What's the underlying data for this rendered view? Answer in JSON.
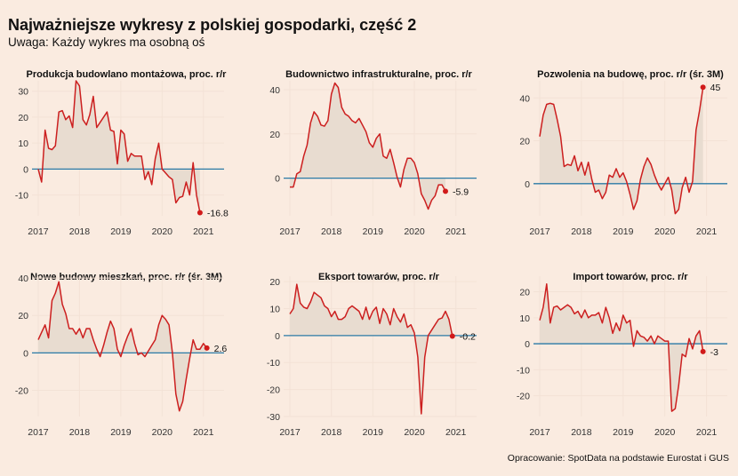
{
  "header": {
    "title": "Najważniejsze wykresy z polskiej gospodarki, część 2",
    "subtitle": "Uwaga: Każdy wykres ma osobną oś"
  },
  "caption": "Opracowanie: SpotData na podstawie Eurostat i GUS",
  "colors": {
    "background": "#faebe0",
    "line": "#cc1f1f",
    "fill": "#e8dcd0",
    "zero_line": "#2a7aa6",
    "grid": "#f3e2d6",
    "end_dot": "#d11a1a"
  },
  "chart_data": [
    {
      "type": "area",
      "title": "Produkcja budowlano montażowa, proc. r/r",
      "x_start": 2017.0,
      "x_step": 0.0833333,
      "xticks": [
        "2017",
        "2018",
        "2019",
        "2020",
        "2021"
      ],
      "xlim": [
        2016.85,
        2021.5
      ],
      "ylim": [
        -18,
        34
      ],
      "yticks": [
        -10,
        0,
        10,
        20,
        30
      ],
      "values": [
        0,
        -5,
        15,
        8,
        7.5,
        9,
        22,
        22.5,
        19,
        20.5,
        16,
        34,
        32,
        19,
        17,
        21,
        28,
        16,
        18,
        20,
        22,
        15,
        14.5,
        2,
        15,
        13.5,
        3,
        6,
        5,
        5,
        5,
        -4,
        -1,
        -6,
        4,
        10,
        0,
        -1.5,
        -3,
        -4,
        -13,
        -11,
        -10.5,
        -5,
        -10,
        2.5,
        -10,
        -16.8
      ],
      "end_label": "-16.8"
    },
    {
      "type": "area",
      "title": "Budownictwo infrastrukturalne, proc. r/r",
      "x_start": 2017.0,
      "x_step": 0.0833333,
      "xticks": [
        "2017",
        "2018",
        "2019",
        "2020",
        "2021"
      ],
      "xlim": [
        2016.85,
        2021.5
      ],
      "ylim": [
        -17,
        44
      ],
      "yticks": [
        0,
        20,
        40
      ],
      "values": [
        -4,
        -4,
        2,
        3,
        10,
        15,
        25,
        30,
        28,
        24,
        23.5,
        26,
        38,
        43,
        41,
        32,
        29,
        28,
        26,
        25,
        27,
        24,
        21,
        16,
        14,
        18,
        20,
        10,
        9,
        13,
        7,
        0.5,
        -4,
        4,
        9,
        9,
        7,
        2,
        -7,
        -10,
        -14,
        -10,
        -8,
        -3,
        -3,
        -5.9
      ],
      "end_label": "-5.9"
    },
    {
      "type": "area",
      "title": "Pozwolenia na budowę, proc. r/r (śr. 3M)",
      "x_start": 2017.0,
      "x_step": 0.0833333,
      "xticks": [
        "2017",
        "2018",
        "2019",
        "2020",
        "2021"
      ],
      "xlim": [
        2016.85,
        2021.5
      ],
      "ylim": [
        -15,
        48
      ],
      "yticks": [
        0,
        20,
        40
      ],
      "values": [
        22,
        32,
        37,
        37.5,
        37,
        30,
        22,
        8,
        9,
        8.5,
        13,
        6,
        10,
        4,
        10,
        2,
        -4,
        -3,
        -7,
        -4,
        4,
        3,
        7,
        3,
        5,
        1,
        -5,
        -12,
        -8,
        2,
        8,
        12,
        9,
        4,
        0,
        -3,
        0,
        3,
        -3,
        -14,
        -12,
        -2,
        3,
        -4,
        1,
        25,
        34,
        45
      ],
      "end_label": "45"
    },
    {
      "type": "area",
      "title": "Nowe budowy mieszkań, proc. r/r (śr. 3M)",
      "x_start": 2017.0,
      "x_step": 0.0833333,
      "xticks": [
        "2017",
        "2018",
        "2019",
        "2020",
        "2021"
      ],
      "xlim": [
        2016.85,
        2021.5
      ],
      "ylim": [
        -34,
        41
      ],
      "yticks": [
        -20,
        0,
        20,
        40
      ],
      "values": [
        7,
        11,
        15,
        8,
        28,
        32,
        38,
        26,
        21,
        13,
        13,
        10,
        13,
        8,
        13,
        13,
        7,
        2,
        -2,
        4,
        11,
        17,
        13,
        2,
        -2,
        4,
        9,
        13,
        5,
        -1,
        0,
        -2,
        1,
        4,
        7,
        15,
        20,
        18,
        15,
        0,
        -22,
        -31,
        -26,
        -14,
        -3,
        7,
        2,
        2,
        5,
        2.6
      ],
      "end_label": "2.6"
    },
    {
      "type": "area",
      "title": "Eksport towarów, proc. r/r",
      "x_start": 2017.0,
      "x_step": 0.0833333,
      "xticks": [
        "2017",
        "2018",
        "2019",
        "2020",
        "2021"
      ],
      "xlim": [
        2016.85,
        2021.5
      ],
      "ylim": [
        -30,
        22
      ],
      "yticks": [
        -30,
        -20,
        -10,
        0,
        10,
        20
      ],
      "values": [
        8,
        10,
        19,
        12,
        10.5,
        10,
        12.5,
        16,
        15,
        14,
        11,
        10,
        7,
        9,
        6,
        6,
        7,
        10,
        11,
        10,
        9,
        6,
        10.5,
        6,
        9,
        10.5,
        4.5,
        10,
        8,
        4,
        10,
        7,
        5,
        8,
        3,
        4,
        1,
        -8,
        -29,
        -8,
        0,
        2,
        4,
        6,
        6.5,
        9,
        6,
        -0.2
      ],
      "end_label": "-0.2"
    },
    {
      "type": "area",
      "title": "Import towarów, proc. r/r",
      "x_start": 2017.0,
      "x_step": 0.0833333,
      "xticks": [
        "2017",
        "2018",
        "2019",
        "2020",
        "2021"
      ],
      "xlim": [
        2016.85,
        2021.5
      ],
      "ylim": [
        -28,
        26
      ],
      "yticks": [
        -20,
        -10,
        0,
        10,
        20
      ],
      "values": [
        9,
        14,
        23,
        8,
        14,
        14.5,
        13,
        14,
        15,
        14,
        11.5,
        12.5,
        10,
        13,
        10,
        11,
        11,
        12,
        8,
        14,
        10,
        4,
        8,
        5,
        11,
        8,
        9,
        -1,
        5,
        3,
        2.5,
        1,
        3,
        0,
        3,
        2,
        1,
        1,
        -26,
        -25,
        -16,
        -4,
        -5,
        2,
        -2,
        3,
        5,
        -3
      ],
      "end_label": "-3"
    }
  ]
}
